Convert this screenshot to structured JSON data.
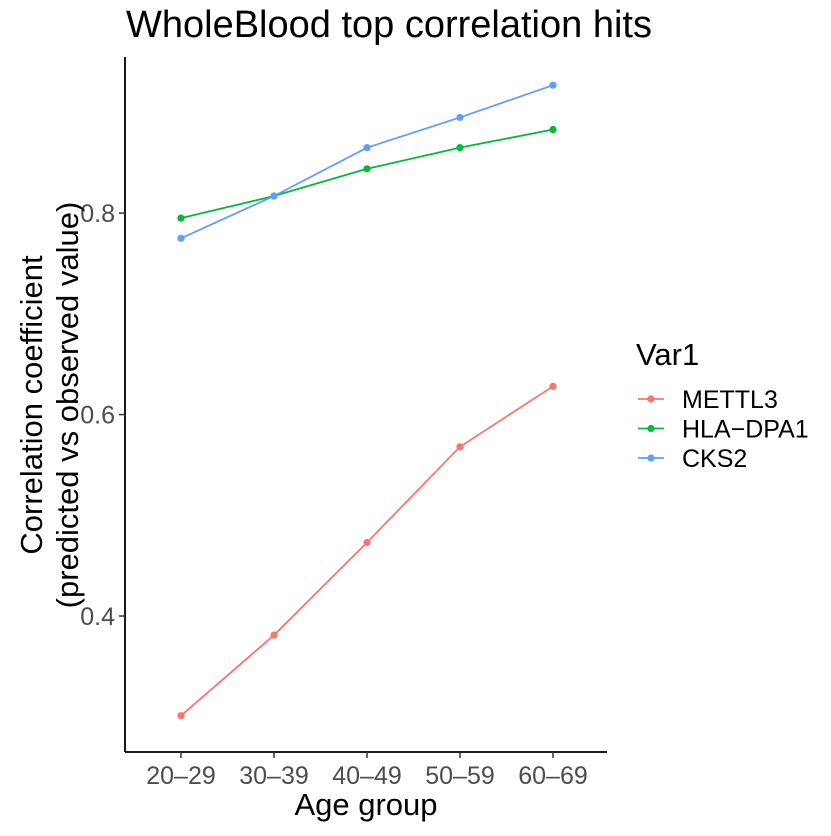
{
  "chart_data": {
    "type": "line",
    "title": "WholeBlood top correlation hits",
    "xlabel": "Age group",
    "ylabel_line1": "Correlation coefficient",
    "ylabel_line2": "(predicted vs observed value)",
    "categories": [
      "20–29",
      "30–39",
      "40–49",
      "50–59",
      "60–69"
    ],
    "y_ticks": [
      0.4,
      0.6,
      0.8
    ],
    "y_tick_labels": [
      "0.4",
      "0.6",
      "0.8"
    ],
    "ylim": [
      0.265,
      0.955
    ],
    "grid": false,
    "legend": {
      "title": "Var1",
      "placement": "right"
    },
    "series": [
      {
        "name": "METTL3",
        "color": "#F8766D",
        "values": [
          0.301,
          0.381,
          0.473,
          0.568,
          0.628
        ]
      },
      {
        "name": "HLA−DPA1",
        "color": "#00BA38",
        "values": [
          0.795,
          0.817,
          0.844,
          0.865,
          0.883
        ]
      },
      {
        "name": "CKS2",
        "color": "#619CFF",
        "values": [
          0.775,
          0.817,
          0.865,
          0.895,
          0.927
        ]
      }
    ]
  }
}
